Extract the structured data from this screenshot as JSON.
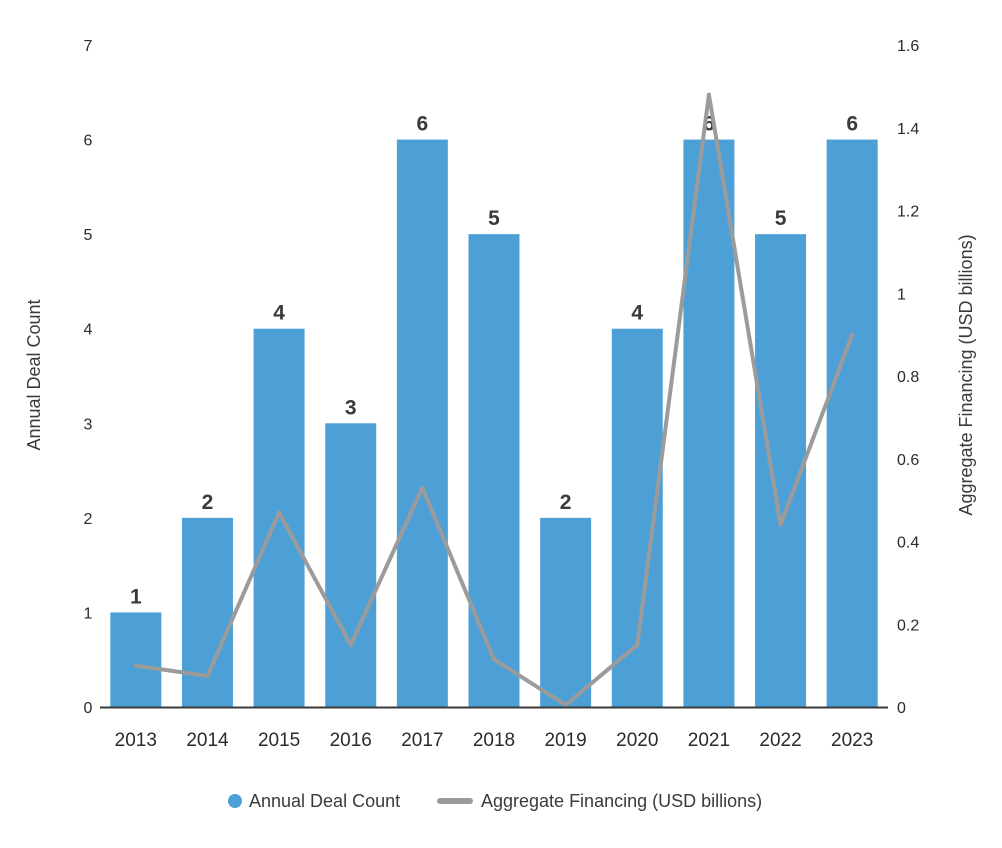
{
  "chart_data": {
    "type": "bar",
    "title": "",
    "categories": [
      "2013",
      "2014",
      "2015",
      "2016",
      "2017",
      "2018",
      "2019",
      "2020",
      "2021",
      "2022",
      "2023"
    ],
    "series": [
      {
        "name": "Annual Deal Count",
        "kind": "bar",
        "axis": "left",
        "values": [
          1,
          2,
          4,
          3,
          6,
          5,
          2,
          4,
          6,
          5,
          6
        ],
        "data_labels": [
          "1",
          "2",
          "4",
          "3",
          "6",
          "5",
          "2",
          "4",
          "6",
          "5",
          "6"
        ]
      },
      {
        "name": "Aggregate Financing (USD billions)",
        "kind": "line",
        "axis": "right",
        "values": [
          0.1,
          0.075,
          0.47,
          0.15,
          0.53,
          0.115,
          0.005,
          0.15,
          1.48,
          0.44,
          0.9
        ]
      }
    ],
    "y_left": {
      "label": "Annual Deal Count",
      "range": [
        0,
        7
      ],
      "ticks": [
        "0",
        "1",
        "2",
        "3",
        "4",
        "5",
        "6",
        "7"
      ]
    },
    "y_right": {
      "label": "Aggregate Financing (USD billions)",
      "range": [
        0,
        1.6
      ],
      "ticks": [
        "0",
        "0.2",
        "0.4",
        "0.6",
        "0.8",
        "1",
        "1.2",
        "1.4",
        "1.6"
      ]
    },
    "xlabel": "",
    "grid": false,
    "legend": {
      "position": "bottom-center",
      "entries": [
        "Annual Deal Count",
        "Aggregate Financing (USD billions)"
      ]
    },
    "colors": {
      "bar": "#4da0d6",
      "line": "#9b9b9b",
      "axis": "#3a3a3a"
    }
  }
}
